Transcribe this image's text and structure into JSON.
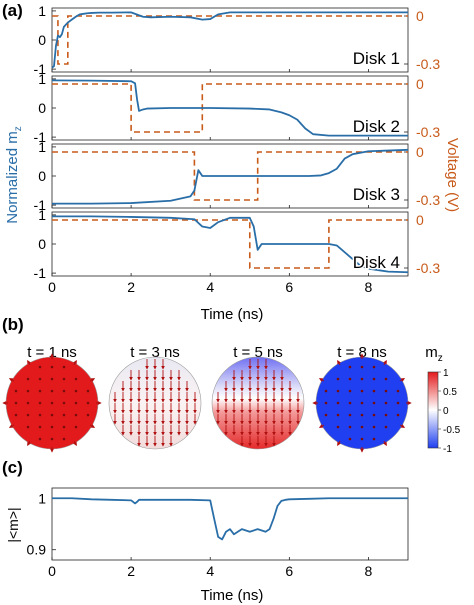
{
  "chart_data": [
    {
      "type": "line",
      "panel_label": "(a)",
      "xlabel": "Time (ns)",
      "xlim": [
        0,
        9
      ],
      "xticks": [
        "0",
        "2",
        "4",
        "6",
        "8"
      ],
      "ylabel_left": "Normalized m",
      "ylabel_left_sub": "z",
      "ylabel_right": "Voltage (V)",
      "left_ticks": [
        "1",
        "0",
        "-1"
      ],
      "right_ticks": [
        "0",
        "-0.3"
      ],
      "left_ylim": [
        -1.1,
        1.1
      ],
      "right_ylim": [
        -0.35,
        0.05
      ],
      "colors": {
        "mz": "#2a6ea8",
        "voltage": "#c85a1a"
      },
      "subplots": [
        {
          "label": "Disk 1",
          "mz": {
            "x": [
              0,
              0.05,
              0.1,
              0.15,
              0.2,
              0.25,
              0.3,
              0.4,
              0.5,
              0.6,
              0.7,
              0.8,
              0.9,
              1.0,
              1.2,
              1.5,
              2.0,
              2.3,
              2.5,
              3.0,
              3.5,
              3.8,
              4.0,
              4.2,
              4.5,
              5.0,
              6.0,
              7.0,
              8.0,
              9.0
            ],
            "y": [
              -0.95,
              -0.9,
              -0.2,
              0.15,
              0.1,
              0.2,
              0.45,
              0.6,
              0.7,
              0.8,
              0.88,
              0.9,
              0.92,
              0.93,
              0.94,
              0.94,
              0.95,
              0.8,
              0.78,
              0.8,
              0.78,
              0.7,
              0.72,
              0.88,
              0.95,
              0.95,
              0.95,
              0.95,
              0.95,
              0.95
            ]
          },
          "voltage": {
            "x": [
              0,
              0.15,
              0.15,
              0.4,
              0.4,
              9
            ],
            "y": [
              0,
              0,
              -0.3,
              -0.3,
              0,
              0
            ]
          }
        },
        {
          "label": "Disk 2",
          "mz": {
            "x": [
              0,
              1.0,
              2.0,
              2.1,
              2.15,
              2.2,
              2.3,
              2.4,
              3.0,
              4.0,
              5.0,
              5.5,
              5.8,
              6.0,
              6.2,
              6.4,
              6.6,
              7.0,
              8.0,
              9.0
            ],
            "y": [
              0.95,
              0.94,
              0.92,
              0.85,
              0.3,
              -0.1,
              -0.05,
              -0.02,
              0,
              0,
              -0.02,
              -0.05,
              -0.15,
              -0.25,
              -0.4,
              -0.7,
              -0.9,
              -0.95,
              -0.95,
              -0.95
            ]
          },
          "voltage": {
            "x": [
              0,
              2.0,
              2.0,
              3.8,
              3.8,
              9
            ],
            "y": [
              0,
              0,
              -0.3,
              -0.3,
              0,
              0
            ]
          }
        },
        {
          "label": "Disk 3",
          "mz": {
            "x": [
              0,
              1.0,
              2.0,
              3.0,
              3.5,
              3.6,
              3.7,
              3.8,
              4.0,
              5.0,
              6.0,
              6.5,
              6.8,
              7.0,
              7.2,
              7.4,
              7.6,
              8.0,
              9.0
            ],
            "y": [
              -0.95,
              -0.95,
              -0.93,
              -0.85,
              -0.7,
              -0.5,
              0.2,
              0,
              0,
              0,
              0,
              0,
              0.02,
              0.1,
              0.25,
              0.6,
              0.75,
              0.85,
              0.9
            ]
          },
          "voltage": {
            "x": [
              0,
              3.6,
              3.6,
              5.2,
              5.2,
              9
            ],
            "y": [
              0,
              0,
              -0.3,
              -0.3,
              0,
              0
            ]
          }
        },
        {
          "label": "Disk 4",
          "mz": {
            "x": [
              0,
              1.0,
              2.0,
              3.0,
              3.6,
              3.8,
              4.0,
              4.2,
              4.5,
              5.0,
              5.1,
              5.2,
              5.3,
              5.5,
              6.0,
              7.0,
              7.2,
              7.5,
              7.8,
              8.0,
              8.5,
              9.0
            ],
            "y": [
              0.95,
              0.95,
              0.93,
              0.9,
              0.85,
              0.6,
              0.55,
              0.75,
              0.9,
              0.9,
              0.6,
              -0.2,
              0,
              0,
              0,
              0,
              -0.05,
              -0.4,
              -0.75,
              -0.85,
              -0.95,
              -0.97
            ]
          },
          "voltage": {
            "x": [
              0,
              5.0,
              5.0,
              7.0,
              7.0,
              9
            ],
            "y": [
              0,
              0,
              -0.3,
              -0.3,
              0,
              0
            ]
          }
        }
      ]
    },
    {
      "type": "heatmap",
      "panel_label": "(b)",
      "colorbar_label": "m",
      "colorbar_label_sub": "z",
      "colorbar_ticks": [
        "1",
        "0.5",
        "0",
        "-0.5",
        "-1"
      ],
      "colorbar_range": [
        -1,
        1
      ],
      "colorbar_colors": {
        "positive": "#e31a1c",
        "zero": "#ffffff",
        "negative": "#1f3ff0"
      },
      "snapshots": [
        {
          "title": "t = 1 ns",
          "mz": 1.0,
          "profile": "uniform"
        },
        {
          "title": "t = 3 ns",
          "mz": 0.05,
          "profile": "vertical-arrows"
        },
        {
          "title": "t = 5 ns",
          "mz": 0.0,
          "profile": "blue-top-red-bottom"
        },
        {
          "title": "t = 8 ns",
          "mz": -1.0,
          "profile": "uniform"
        }
      ]
    },
    {
      "type": "line",
      "panel_label": "(c)",
      "xlabel": "Time (ns)",
      "ylabel": "|<m>|",
      "xlim": [
        0,
        9
      ],
      "ylim": [
        0.88,
        1.02
      ],
      "xticks": [
        "0",
        "2",
        "4",
        "6",
        "8"
      ],
      "yticks": [
        "1",
        "0.9"
      ],
      "color": "#2a6ea8",
      "x": [
        0,
        0.5,
        1.0,
        1.5,
        2.0,
        2.1,
        2.15,
        2.2,
        2.3,
        2.5,
        3.0,
        3.5,
        4.0,
        4.1,
        4.2,
        4.3,
        4.4,
        4.5,
        4.6,
        4.8,
        5.0,
        5.2,
        5.4,
        5.5,
        5.6,
        5.7,
        5.8,
        5.9,
        6.0,
        6.5,
        7.0,
        8.0,
        9.0
      ],
      "y": [
        1.0,
        1.0,
        0.998,
        0.997,
        0.996,
        0.99,
        0.993,
        0.997,
        0.997,
        0.997,
        0.997,
        0.997,
        0.996,
        0.96,
        0.925,
        0.92,
        0.935,
        0.94,
        0.93,
        0.94,
        0.935,
        0.94,
        0.935,
        0.94,
        0.96,
        0.985,
        0.995,
        0.997,
        0.998,
        0.999,
        1.0,
        1.0,
        1.0
      ]
    }
  ]
}
